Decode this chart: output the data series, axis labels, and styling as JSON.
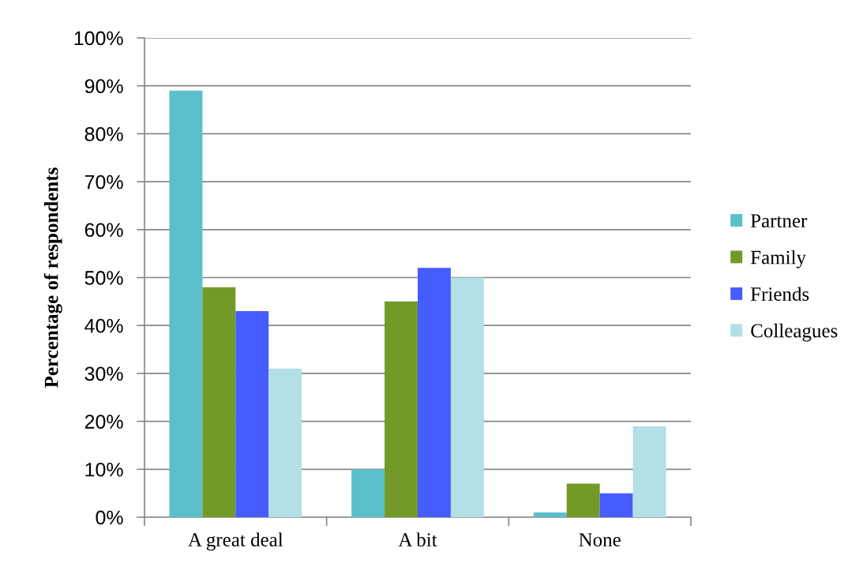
{
  "chart_data": {
    "type": "bar",
    "ylabel": "Percentage of respondents",
    "categories": [
      "A great deal",
      "A bit",
      "None"
    ],
    "series": [
      {
        "name": "Partner",
        "color": "#5bbfcc",
        "values": [
          89,
          10,
          1
        ]
      },
      {
        "name": "Family",
        "color": "#739a28",
        "values": [
          48,
          45,
          7
        ]
      },
      {
        "name": "Friends",
        "color": "#455cff",
        "values": [
          43,
          52,
          5
        ]
      },
      {
        "name": "Colleagues",
        "color": "#b2e0e6",
        "values": [
          31,
          50,
          19
        ]
      }
    ],
    "ylim": [
      0,
      100
    ],
    "yticks": [
      {
        "value": 0,
        "label": "0%"
      },
      {
        "value": 10,
        "label": "10%"
      },
      {
        "value": 20,
        "label": "20%"
      },
      {
        "value": 30,
        "label": "30%"
      },
      {
        "value": 40,
        "label": "40%"
      },
      {
        "value": 50,
        "label": "50%"
      },
      {
        "value": 60,
        "label": "60%"
      },
      {
        "value": 70,
        "label": "70%"
      },
      {
        "value": 80,
        "label": "80%"
      },
      {
        "value": 90,
        "label": "90%"
      },
      {
        "value": 100,
        "label": "100%"
      }
    ],
    "grid": "y",
    "legend": "right"
  }
}
